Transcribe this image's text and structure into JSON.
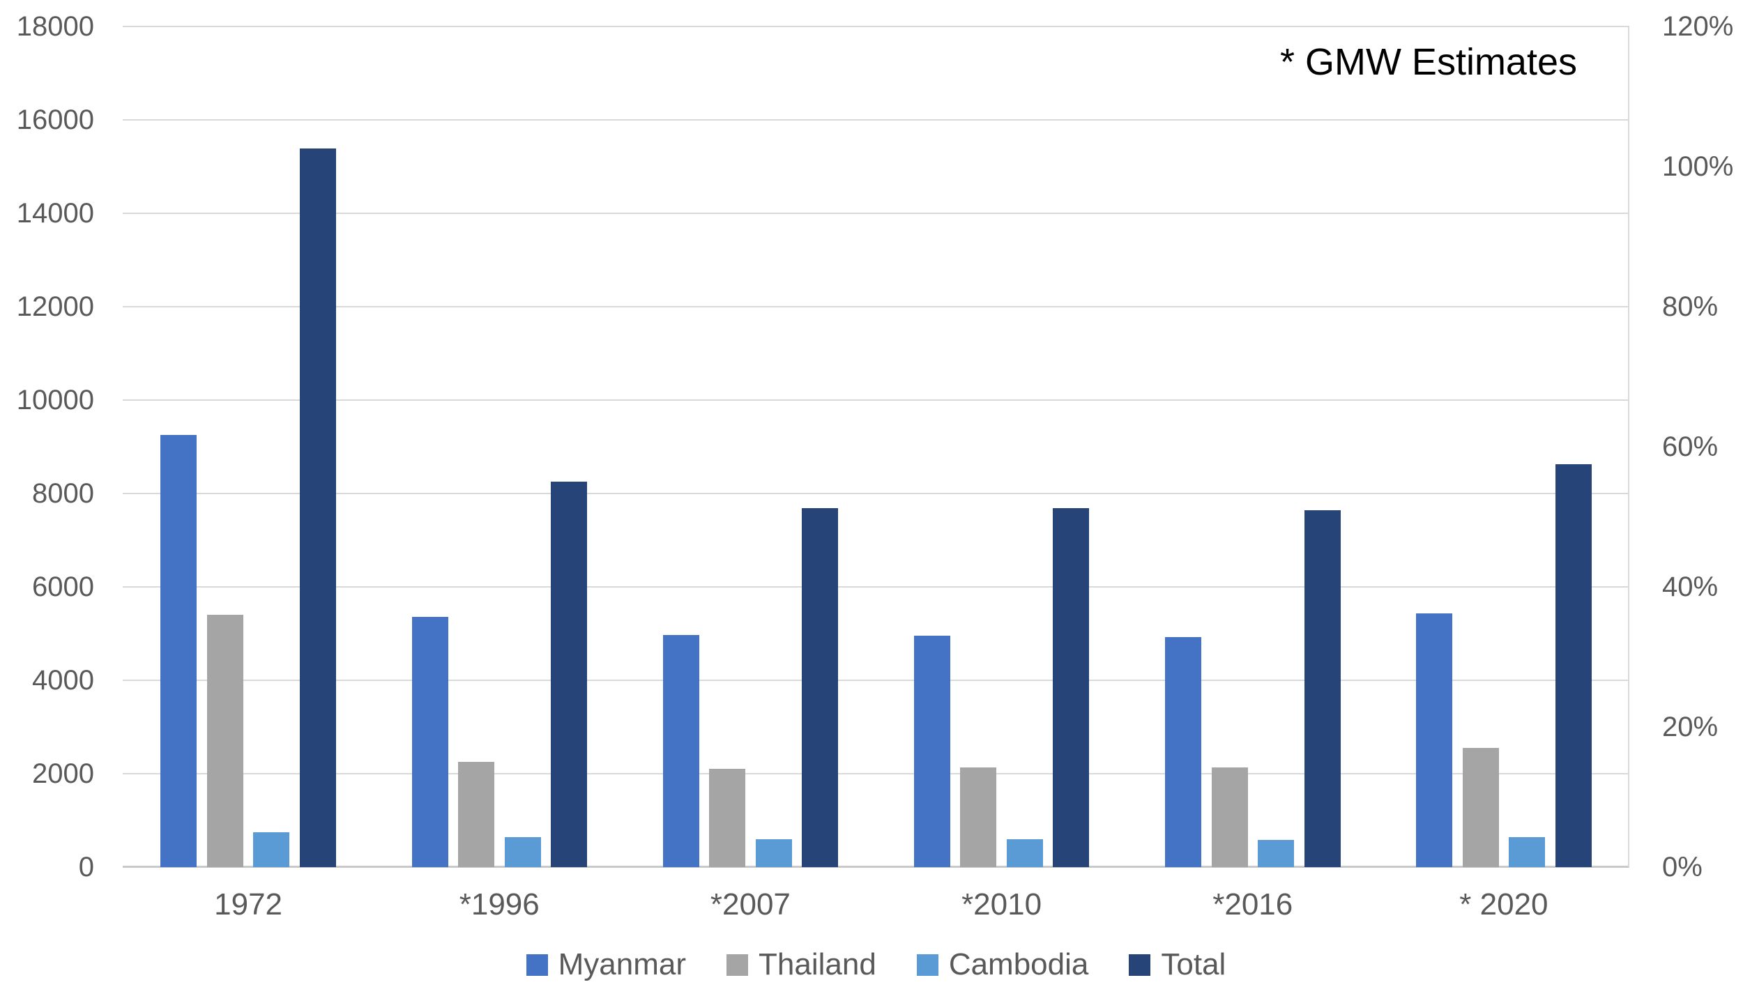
{
  "chart_data": {
    "type": "bar",
    "annotation": "* GMW Estimates",
    "categories": [
      "1972",
      "*1996",
      "*2007",
      "*2010",
      "*2016",
      "* 2020"
    ],
    "series": [
      {
        "name": "Myanmar",
        "color": "#4472C4",
        "values": [
          9250,
          5360,
          4970,
          4960,
          4920,
          5430
        ]
      },
      {
        "name": "Thailand",
        "color": "#A5A5A5",
        "values": [
          5400,
          2250,
          2110,
          2140,
          2140,
          2550
        ]
      },
      {
        "name": "Cambodia",
        "color": "#5B9BD5",
        "values": [
          740,
          640,
          600,
          590,
          580,
          640
        ]
      },
      {
        "name": "Total",
        "color": "#264478",
        "values": [
          15390,
          8250,
          7680,
          7690,
          7640,
          8620
        ]
      }
    ],
    "left_axis": {
      "min": 0,
      "max": 18000,
      "step": 2000,
      "tick_labels": [
        "0",
        "2000",
        "4000",
        "6000",
        "8000",
        "10000",
        "12000",
        "14000",
        "16000",
        "18000"
      ]
    },
    "right_axis": {
      "tick_labels": [
        "0%",
        "20%",
        "40%",
        "60%",
        "80%",
        "100%",
        "120%"
      ]
    },
    "legend_position": "bottom",
    "grid": true,
    "colors": {
      "text": "#595959",
      "annotation_text": "#000000",
      "gridline": "#D9D9D9",
      "axisline": "#C9C9C9",
      "background": "#FFFFFF"
    }
  }
}
